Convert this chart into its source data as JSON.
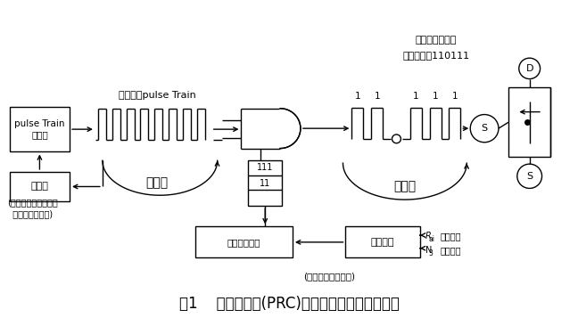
{
  "title": "图1    脉冲比控制(PRC)系统最优化脉冲串示意图",
  "title_fontsize": 12,
  "bg_color": "#ffffff",
  "fg_color": "#000000",
  "fig_width": 6.48,
  "fig_height": 3.57,
  "pulse_train_label": "最优化的pulse Train",
  "top_label1": "数控开关管强电",
  "top_label2": "通断脉冲串110111",
  "opt_loop_label": "优化环",
  "adj_loop_label": "调整环",
  "note_left_line1": "(自有最优化算法逻辑",
  "note_left_line2": "  不必另外编程序)",
  "note_bottom": "(数码反馈不用补偿)",
  "feedback_r": "Rai电流取样",
  "feedback_n": "N3电压取样",
  "label_prc": "脉冲比控制器",
  "label_fb": "反馈控制",
  "label_gen": "pulse Train\n发生器",
  "label_opt": "最优化",
  "label_D": "D",
  "label_S": "S"
}
